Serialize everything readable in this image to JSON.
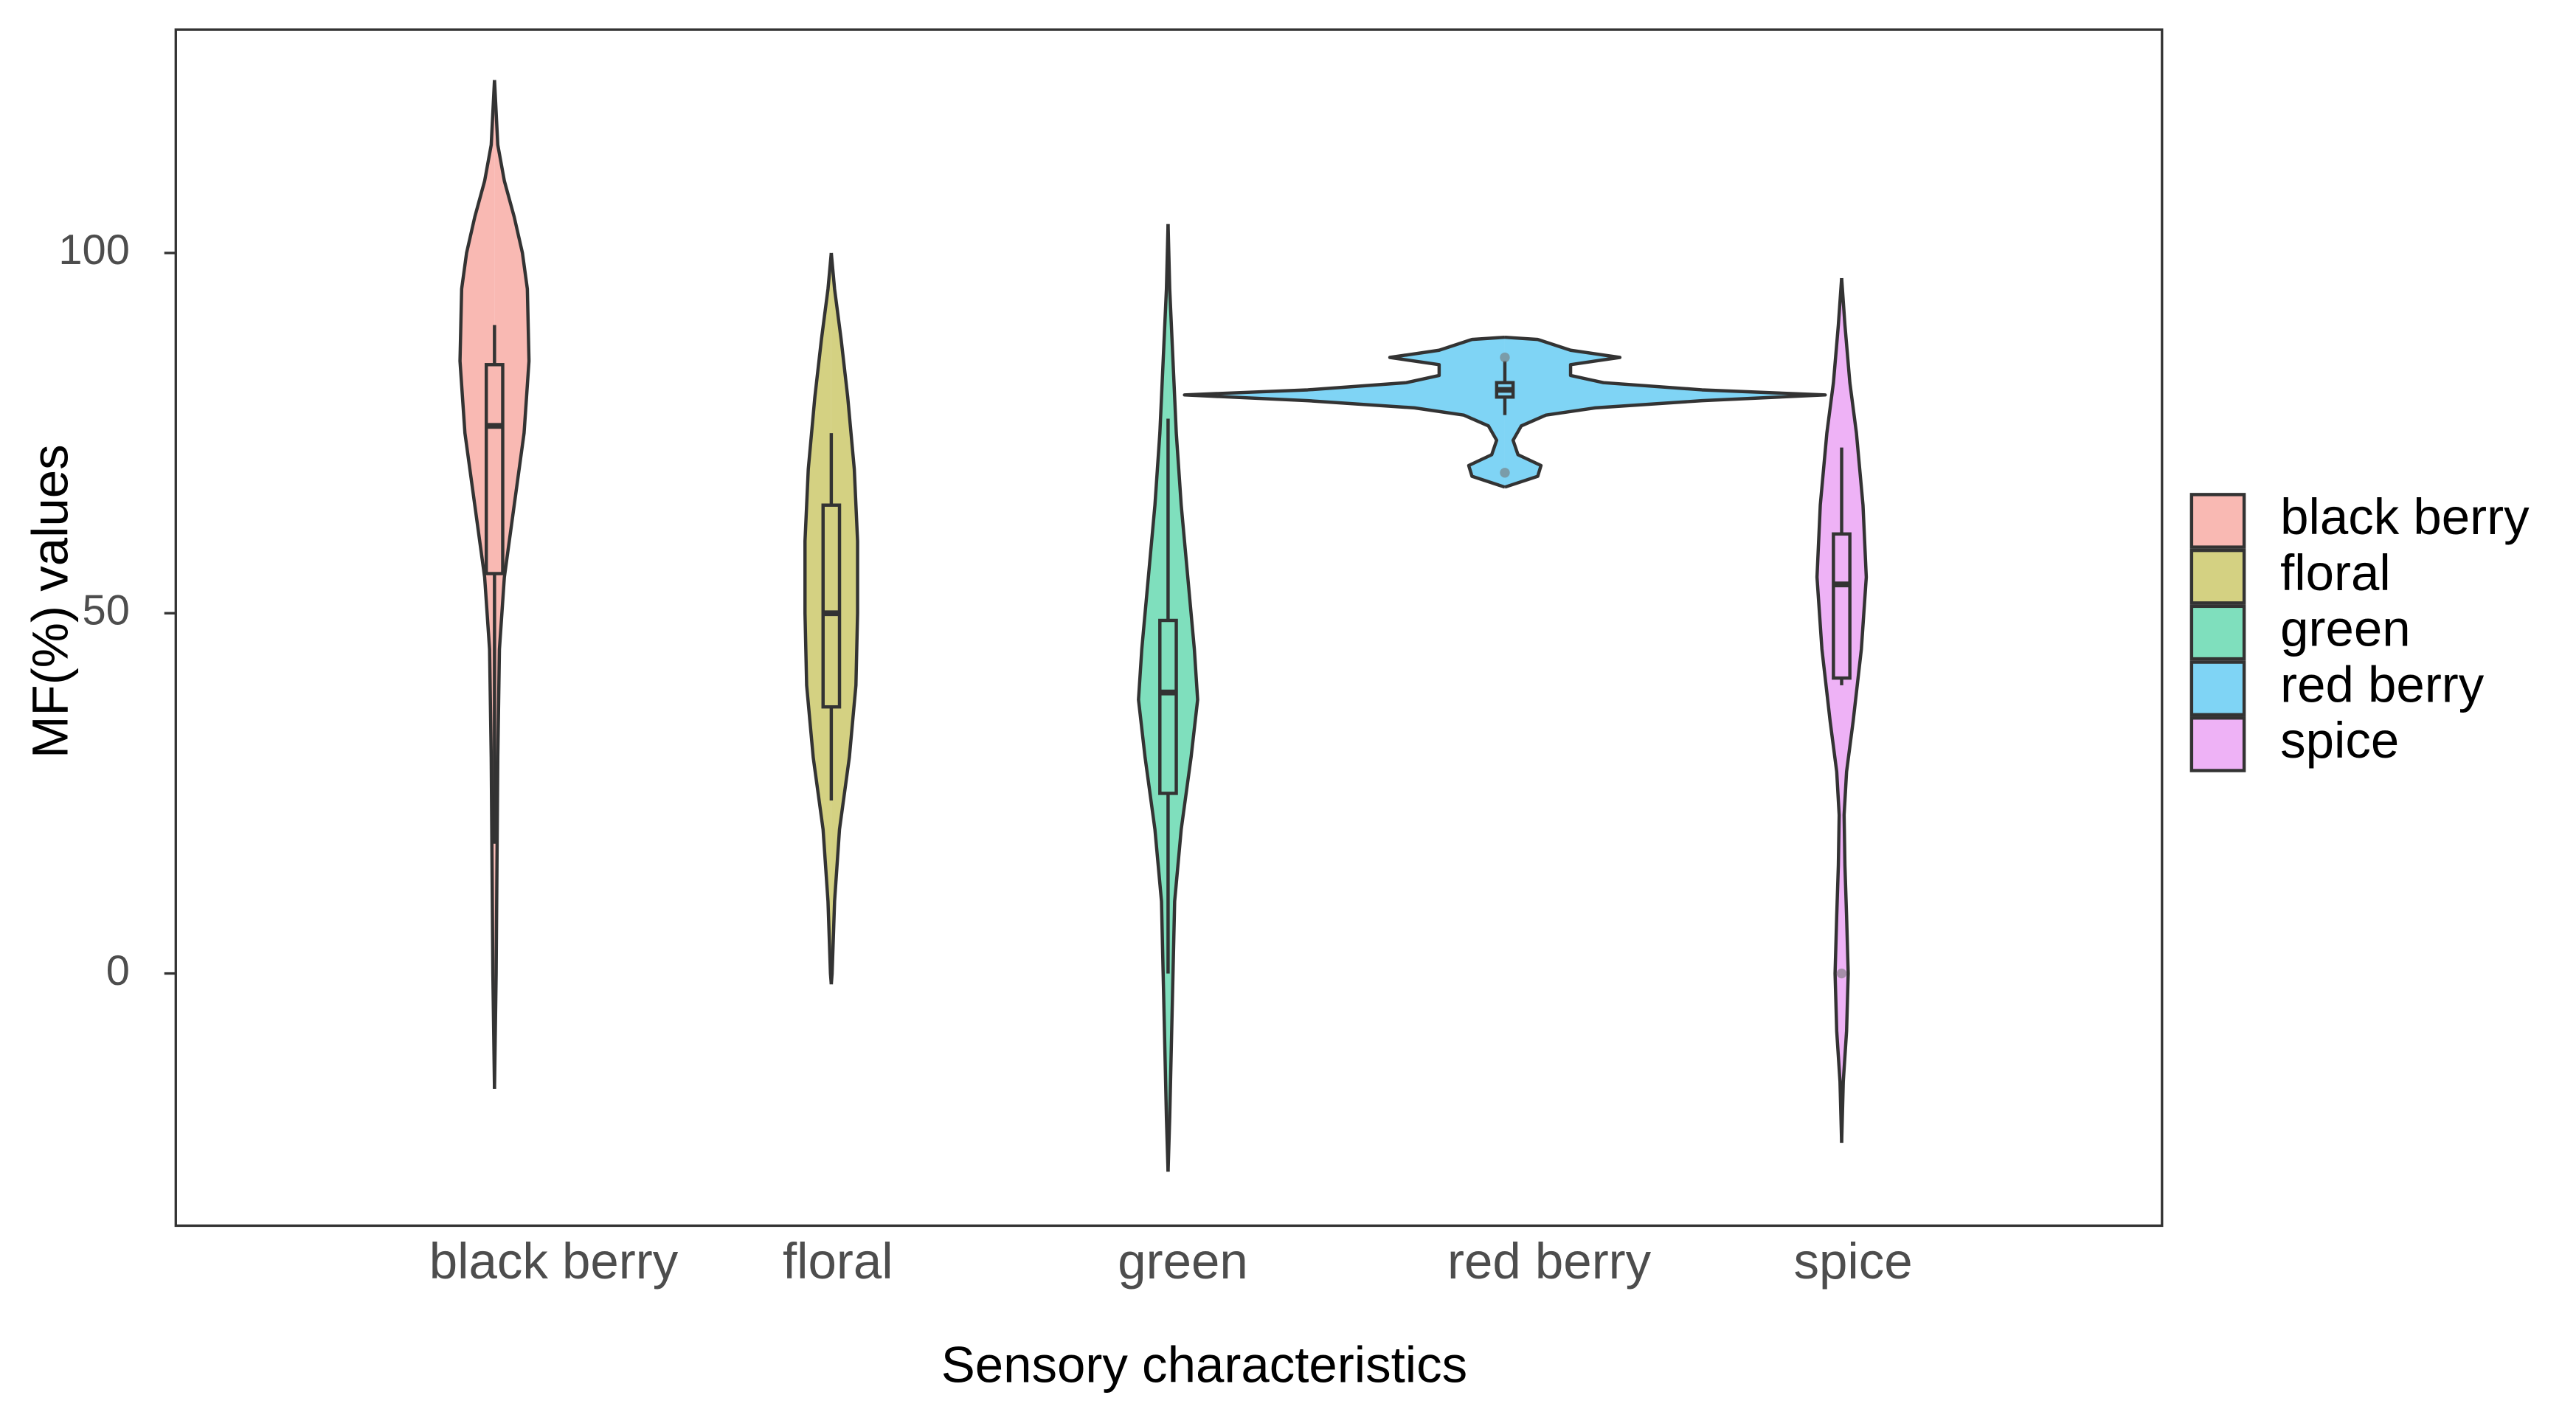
{
  "chart_data": {
    "type": "violin",
    "x_label": "Sensory characteristics",
    "y_label": "MF(%) values",
    "ylim": [
      -35,
      131
    ],
    "yticks": [
      0,
      50,
      100
    ],
    "categories": [
      "black berry",
      "floral",
      "green",
      "red berry",
      "spice"
    ],
    "series": [
      {
        "name": "black berry",
        "color": "#f9b9b3",
        "q1": 55.5,
        "median": 76,
        "q3": 84.5,
        "whisker_low": 18,
        "whisker_high": 90,
        "outliers": [],
        "y": [
          124,
          115,
          110,
          105,
          100,
          95,
          85,
          75,
          65,
          55,
          45,
          30,
          15,
          0,
          -16
        ],
        "density": [
          0,
          2,
          6,
          12,
          17,
          20,
          21,
          18,
          12,
          6,
          3,
          2,
          1.5,
          1,
          0
        ]
      },
      {
        "name": "floral",
        "color": "#d4d182",
        "q1": 37,
        "median": 50,
        "q3": 65,
        "whisker_low": 24,
        "whisker_high": 75,
        "outliers": [],
        "y": [
          100,
          95,
          88,
          80,
          70,
          60,
          50,
          40,
          30,
          20,
          10,
          0,
          -1.5
        ],
        "density": [
          0,
          2,
          6,
          10,
          14,
          16,
          16,
          15,
          11,
          5,
          2,
          0.5,
          0
        ]
      },
      {
        "name": "green",
        "color": "#7fdfbd",
        "q1": 25,
        "median": 39,
        "q3": 49,
        "whisker_low": 0,
        "whisker_high": 77,
        "outliers": [],
        "y": [
          104,
          95,
          85,
          75,
          65,
          55,
          45,
          38,
          30,
          20,
          10,
          0,
          -10,
          -20,
          -27.5
        ],
        "density": [
          0,
          1,
          3,
          5,
          8,
          12,
          16,
          18,
          14,
          8,
          4,
          3,
          2,
          1,
          0
        ]
      },
      {
        "name": "red berry",
        "color": "#7fd4f5",
        "q1": 80,
        "median": 81,
        "q3": 82,
        "whisker_low": 77.5,
        "whisker_high": 85,
        "outliers": [
          69.5,
          85.5
        ],
        "y": [
          88.3,
          88,
          86.5,
          85.5,
          84.5,
          83,
          82,
          81,
          80.3,
          79.5,
          78.5,
          77.5,
          76,
          74,
          72,
          70.5,
          69,
          67.5
        ],
        "density": [
          0,
          20,
          40,
          70,
          40,
          40,
          60,
          120,
          195,
          120,
          55,
          25,
          10,
          5,
          8,
          22,
          20,
          0
        ]
      },
      {
        "name": "spice",
        "color": "#eeb2f6",
        "q1": 41,
        "median": 54,
        "q3": 61,
        "whisker_low": 40,
        "whisker_high": 73,
        "outliers": [
          0
        ],
        "y": [
          96.5,
          90,
          82,
          75,
          65,
          55,
          45,
          35,
          28,
          22,
          15,
          8,
          0,
          -8,
          -15,
          -23.5
        ],
        "density": [
          0,
          2,
          5,
          9,
          13,
          15,
          12,
          7,
          3,
          1.5,
          2,
          3,
          4,
          3,
          1,
          0
        ]
      }
    ]
  }
}
